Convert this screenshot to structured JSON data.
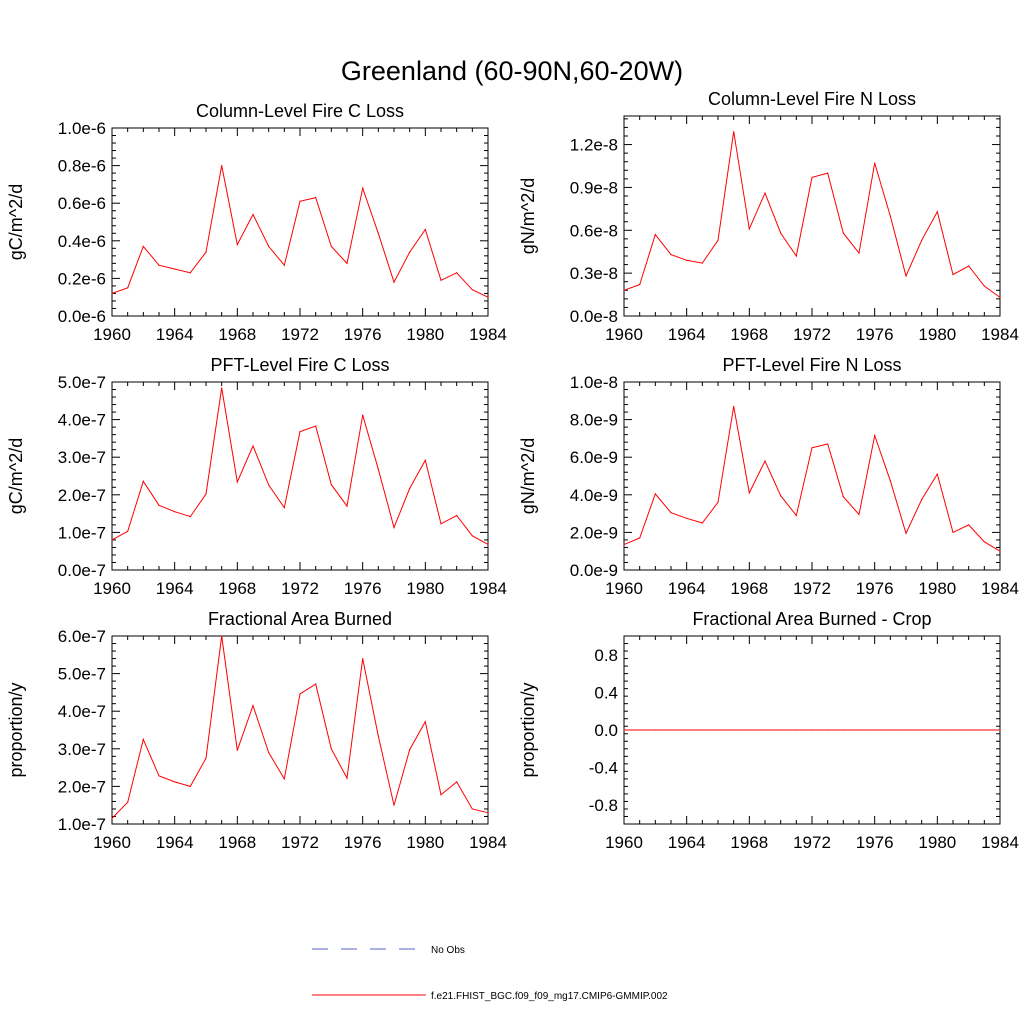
{
  "title": "Greenland (60-90N,60-20W)",
  "colors": {
    "model": "#ff0000",
    "obs": "#5a64c8",
    "axis": "#000000"
  },
  "legend": [
    {
      "label": "No Obs",
      "style": "dashed",
      "color": "#5a64c8"
    },
    {
      "label": "f.e21.FHIST_BGC.f09_f09_mg17.CMIP6-GMMIP.002",
      "style": "solid",
      "color": "#ff0000"
    }
  ],
  "chart_data": [
    {
      "type": "line",
      "title": "Column-Level Fire C Loss",
      "xlabel": "",
      "ylabel": "gC/m^2/d",
      "xlim": [
        1960,
        1984
      ],
      "xticks": [
        1960,
        1964,
        1968,
        1972,
        1976,
        1980,
        1984
      ],
      "xticklabels": [
        "1960",
        "1964",
        "1968",
        "1972",
        "1976",
        "1980",
        "1984"
      ],
      "ylim": [
        0,
        1.0
      ],
      "yticks": [
        0,
        0.2,
        0.4,
        0.6,
        0.8,
        1.0
      ],
      "yticklabels": [
        "0.0e-6",
        "0.2e-6",
        "0.4e-6",
        "0.6e-6",
        "0.8e-6",
        "1.0e-6"
      ],
      "yscale_note": "values in units of 1e-6",
      "x": [
        1960,
        1961,
        1962,
        1963,
        1964,
        1965,
        1966,
        1967,
        1968,
        1969,
        1970,
        1971,
        1972,
        1973,
        1974,
        1975,
        1976,
        1977,
        1978,
        1979,
        1980,
        1981,
        1982,
        1983,
        1984
      ],
      "series": [
        {
          "name": "f.e21.FHIST_BGC.f09_f09_mg17.CMIP6-GMMIP.002",
          "values": [
            0.12,
            0.15,
            0.37,
            0.27,
            0.25,
            0.23,
            0.34,
            0.8,
            0.38,
            0.54,
            0.37,
            0.27,
            0.61,
            0.63,
            0.37,
            0.28,
            0.68,
            0.44,
            0.18,
            0.34,
            0.46,
            0.19,
            0.23,
            0.14,
            0.1
          ]
        }
      ]
    },
    {
      "type": "line",
      "title": "Column-Level Fire N Loss",
      "xlabel": "",
      "ylabel": "gN/m^2/d",
      "xlim": [
        1960,
        1984
      ],
      "xticks": [
        1960,
        1964,
        1968,
        1972,
        1976,
        1980,
        1984
      ],
      "xticklabels": [
        "1960",
        "1964",
        "1968",
        "1972",
        "1976",
        "1980",
        "1984"
      ],
      "ylim": [
        0,
        1.4
      ],
      "yticks": [
        0,
        0.3,
        0.6,
        0.9,
        1.2
      ],
      "yticklabels": [
        "0.0e-8",
        "0.3e-8",
        "0.6e-8",
        "0.9e-8",
        "1.2e-8"
      ],
      "yscale_note": "values in units of 1e-8",
      "x": [
        1960,
        1961,
        1962,
        1963,
        1964,
        1965,
        1966,
        1967,
        1968,
        1969,
        1970,
        1971,
        1972,
        1973,
        1974,
        1975,
        1976,
        1977,
        1978,
        1979,
        1980,
        1981,
        1982,
        1983,
        1984
      ],
      "series": [
        {
          "name": "f.e21.FHIST_BGC.f09_f09_mg17.CMIP6-GMMIP.002",
          "values": [
            0.18,
            0.22,
            0.57,
            0.43,
            0.39,
            0.37,
            0.53,
            1.29,
            0.61,
            0.86,
            0.58,
            0.42,
            0.97,
            1.0,
            0.58,
            0.44,
            1.07,
            0.7,
            0.28,
            0.53,
            0.73,
            0.29,
            0.35,
            0.21,
            0.13
          ]
        }
      ]
    },
    {
      "type": "line",
      "title": "PFT-Level Fire C Loss",
      "xlabel": "",
      "ylabel": "gC/m^2/d",
      "xlim": [
        1960,
        1984
      ],
      "xticks": [
        1960,
        1964,
        1968,
        1972,
        1976,
        1980,
        1984
      ],
      "xticklabels": [
        "1960",
        "1964",
        "1968",
        "1972",
        "1976",
        "1980",
        "1984"
      ],
      "ylim": [
        0,
        5.0
      ],
      "yticks": [
        0,
        1,
        2,
        3,
        4,
        5
      ],
      "yticklabels": [
        "0.0e-7",
        "1.0e-7",
        "2.0e-7",
        "3.0e-7",
        "4.0e-7",
        "5.0e-7"
      ],
      "yscale_note": "values in units of 1e-7",
      "x": [
        1960,
        1961,
        1962,
        1963,
        1964,
        1965,
        1966,
        1967,
        1968,
        1969,
        1970,
        1971,
        1972,
        1973,
        1974,
        1975,
        1976,
        1977,
        1978,
        1979,
        1980,
        1981,
        1982,
        1983,
        1984
      ],
      "series": [
        {
          "name": "f.e21.FHIST_BGC.f09_f09_mg17.CMIP6-GMMIP.002",
          "values": [
            0.8,
            1.03,
            2.36,
            1.72,
            1.55,
            1.42,
            2.02,
            4.84,
            2.34,
            3.3,
            2.26,
            1.66,
            3.68,
            3.83,
            2.27,
            1.7,
            4.12,
            2.68,
            1.13,
            2.17,
            2.92,
            1.23,
            1.45,
            0.91,
            0.68
          ]
        }
      ]
    },
    {
      "type": "line",
      "title": "PFT-Level Fire N Loss",
      "xlabel": "",
      "ylabel": "gN/m^2/d",
      "xlim": [
        1960,
        1984
      ],
      "xticks": [
        1960,
        1964,
        1968,
        1972,
        1976,
        1980,
        1984
      ],
      "xticklabels": [
        "1960",
        "1964",
        "1968",
        "1972",
        "1976",
        "1980",
        "1984"
      ],
      "ylim": [
        0,
        10.0
      ],
      "yticks": [
        0,
        2,
        4,
        6,
        8,
        10
      ],
      "yticklabels": [
        "0.0e-9",
        "2.0e-9",
        "4.0e-9",
        "6.0e-9",
        "8.0e-9",
        "1.0e-8"
      ],
      "yscale_note": "values in units of 1e-9",
      "x": [
        1960,
        1961,
        1962,
        1963,
        1964,
        1965,
        1966,
        1967,
        1968,
        1969,
        1970,
        1971,
        1972,
        1973,
        1974,
        1975,
        1976,
        1977,
        1978,
        1979,
        1980,
        1981,
        1982,
        1983,
        1984
      ],
      "series": [
        {
          "name": "f.e21.FHIST_BGC.f09_f09_mg17.CMIP6-GMMIP.002",
          "values": [
            1.35,
            1.7,
            4.05,
            3.05,
            2.75,
            2.5,
            3.6,
            8.7,
            4.1,
            5.8,
            3.95,
            2.9,
            6.5,
            6.7,
            3.9,
            2.95,
            7.15,
            4.75,
            1.95,
            3.75,
            5.1,
            2.0,
            2.4,
            1.5,
            1.0
          ]
        }
      ]
    },
    {
      "type": "line",
      "title": "Fractional Area Burned",
      "xlabel": "",
      "ylabel": "proportion/y",
      "xlim": [
        1960,
        1984
      ],
      "xticks": [
        1960,
        1964,
        1968,
        1972,
        1976,
        1980,
        1984
      ],
      "xticklabels": [
        "1960",
        "1964",
        "1968",
        "1972",
        "1976",
        "1980",
        "1984"
      ],
      "ylim": [
        1.0,
        6.0
      ],
      "yticks": [
        1,
        2,
        3,
        4,
        5,
        6
      ],
      "yticklabels": [
        "1.0e-7",
        "2.0e-7",
        "3.0e-7",
        "4.0e-7",
        "5.0e-7",
        "6.0e-7"
      ],
      "yscale_note": "values in units of 1e-7",
      "x": [
        1960,
        1961,
        1962,
        1963,
        1964,
        1965,
        1966,
        1967,
        1968,
        1969,
        1970,
        1971,
        1972,
        1973,
        1974,
        1975,
        1976,
        1977,
        1978,
        1979,
        1980,
        1981,
        1982,
        1983,
        1984
      ],
      "series": [
        {
          "name": "f.e21.FHIST_BGC.f09_f09_mg17.CMIP6-GMMIP.002",
          "values": [
            1.15,
            1.58,
            3.25,
            2.28,
            2.12,
            2.0,
            2.75,
            6.0,
            2.96,
            4.15,
            2.9,
            2.2,
            4.46,
            4.72,
            3.0,
            2.22,
            5.4,
            3.34,
            1.5,
            2.98,
            3.72,
            1.78,
            2.12,
            1.4,
            1.3
          ]
        }
      ]
    },
    {
      "type": "line",
      "title": "Fractional Area Burned - Crop",
      "xlabel": "",
      "ylabel": "proportion/y",
      "xlim": [
        1960,
        1984
      ],
      "xticks": [
        1960,
        1964,
        1968,
        1972,
        1976,
        1980,
        1984
      ],
      "xticklabels": [
        "1960",
        "1964",
        "1968",
        "1972",
        "1976",
        "1980",
        "1984"
      ],
      "ylim": [
        -1.0,
        1.0
      ],
      "yticks": [
        -0.8,
        -0.4,
        0,
        0.4,
        0.8
      ],
      "yticklabels": [
        "-0.8",
        "-0.4",
        "0.0",
        "0.4",
        "0.8"
      ],
      "x": [
        1960,
        1961,
        1962,
        1963,
        1964,
        1965,
        1966,
        1967,
        1968,
        1969,
        1970,
        1971,
        1972,
        1973,
        1974,
        1975,
        1976,
        1977,
        1978,
        1979,
        1980,
        1981,
        1982,
        1983,
        1984
      ],
      "series": [
        {
          "name": "f.e21.FHIST_BGC.f09_f09_mg17.CMIP6-GMMIP.002",
          "values": [
            0,
            0,
            0,
            0,
            0,
            0,
            0,
            0,
            0,
            0,
            0,
            0,
            0,
            0,
            0,
            0,
            0,
            0,
            0,
            0,
            0,
            0,
            0,
            0,
            0
          ]
        }
      ]
    }
  ]
}
